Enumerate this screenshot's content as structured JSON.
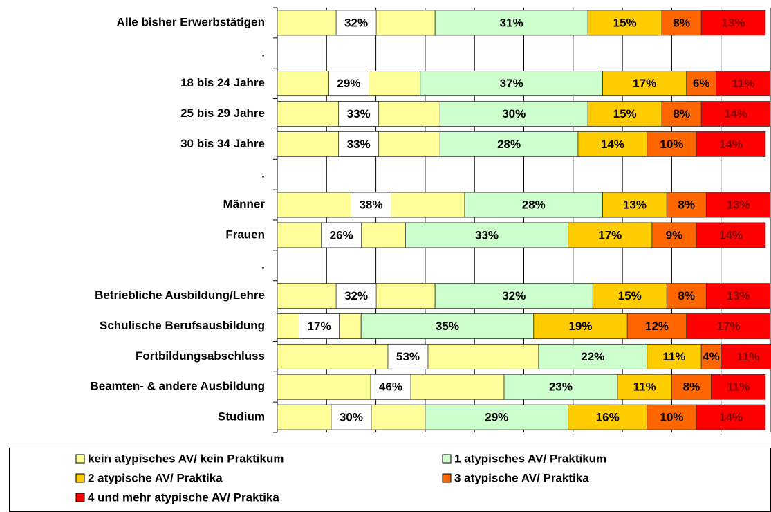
{
  "chart_data": {
    "type": "stacked-barh",
    "categories": [
      "Alle bisher Erwerbstätigen",
      ".",
      "18 bis 24 Jahre",
      "25 bis 29 Jahre",
      "30 bis 34 Jahre",
      ".",
      "Männer",
      "Frauen",
      ".",
      "Betriebliche Ausbildung/Lehre",
      "Schulische Berufsausbildung",
      "Fortbildungsabschluss",
      "Beamten- & andere Ausbildung",
      "Studium"
    ],
    "series": [
      {
        "name": "kein atypisches AV/ kein Praktikum",
        "color": "#ffff99",
        "values": [
          32,
          null,
          29,
          33,
          33,
          null,
          38,
          26,
          null,
          32,
          17,
          53,
          46,
          30
        ],
        "value_labels": [
          "32%",
          null,
          "29%",
          "33%",
          "33%",
          null,
          "38%",
          "26%",
          null,
          "32%",
          "17%",
          "53%",
          "46%",
          "30%"
        ]
      },
      {
        "name": "1 atypisches AV/ Praktikum",
        "color": "#ccffcc",
        "values": [
          31,
          null,
          37,
          30,
          28,
          null,
          28,
          33,
          null,
          32,
          35,
          22,
          23,
          29
        ],
        "value_labels": [
          "31%",
          null,
          "37%",
          "30%",
          "28%",
          null,
          "28%",
          "33%",
          null,
          "32%",
          "35%",
          "22%",
          "23%",
          "29%"
        ]
      },
      {
        "name": "2 atypische AV/ Praktika",
        "color": "#ffcc00",
        "values": [
          15,
          null,
          17,
          15,
          14,
          null,
          13,
          17,
          null,
          15,
          19,
          11,
          11,
          16
        ],
        "value_labels": [
          "15%",
          null,
          "17%",
          "15%",
          "14%",
          null,
          "13%",
          "17%",
          null,
          "15%",
          "19%",
          "11%",
          "11%",
          "16%"
        ]
      },
      {
        "name": "3 atypische AV/ Praktika",
        "color": "#ff6600",
        "values": [
          8,
          null,
          6,
          8,
          10,
          null,
          8,
          9,
          null,
          8,
          12,
          4,
          8,
          10
        ],
        "value_labels": [
          "8%",
          null,
          "6%",
          "8%",
          "10%",
          null,
          "8%",
          "9%",
          null,
          "8%",
          "12%",
          "4%",
          "8%",
          "10%"
        ]
      },
      {
        "name": "4 und mehr atypische AV/ Praktika",
        "color": "#ff0000",
        "values": [
          13,
          null,
          11,
          14,
          14,
          null,
          13,
          14,
          null,
          13,
          17,
          11,
          11,
          14
        ],
        "value_labels": [
          "13%",
          null,
          "11%",
          "14%",
          "14%",
          null,
          "13%",
          "14%",
          null,
          "13%",
          "17%",
          "11%",
          "11%",
          "14%"
        ]
      }
    ],
    "xlim": [
      0,
      100
    ],
    "xticks": [
      0,
      10,
      20,
      30,
      40,
      50,
      60,
      70,
      80,
      90,
      100
    ],
    "grid": true
  }
}
